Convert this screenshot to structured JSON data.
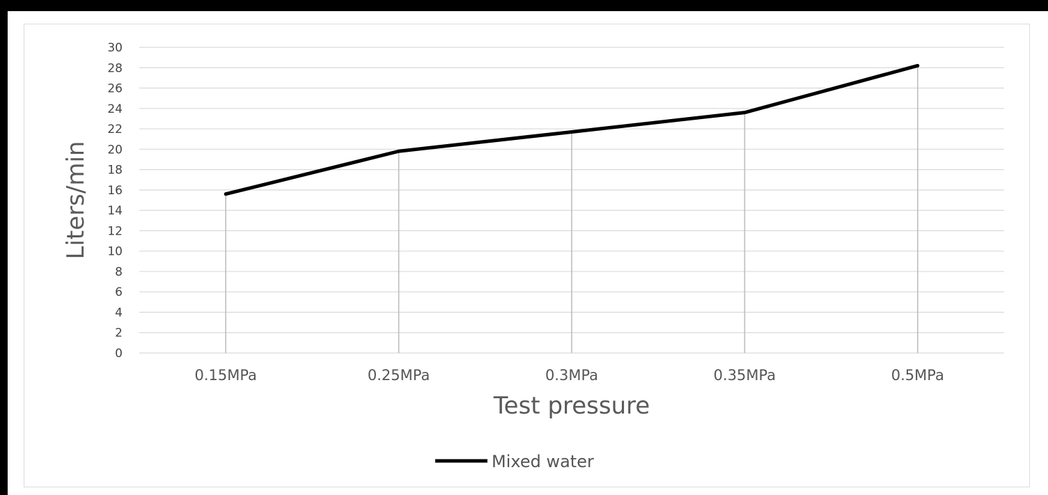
{
  "chart_data": {
    "type": "line",
    "title": "",
    "xlabel": "Test pressure",
    "ylabel": "Liters/min",
    "categories": [
      "0.15MPa",
      "0.25MPa",
      "0.3MPa",
      "0.35MPa",
      "0.5MPa"
    ],
    "series": [
      {
        "name": "Mixed water",
        "values": [
          15.6,
          19.8,
          21.7,
          23.6,
          28.2
        ],
        "color": "#000000"
      }
    ],
    "ylim": [
      0,
      30
    ],
    "yticks": [
      0,
      2,
      4,
      6,
      8,
      10,
      12,
      14,
      16,
      18,
      20,
      22,
      24,
      26,
      28,
      30
    ],
    "grid": true,
    "drop_lines": true,
    "legend_position": "bottom-center",
    "colors": {
      "gridline": "#d9d9d9",
      "dropline": "#bdbdbd",
      "line": "#000000",
      "background": "#000000"
    }
  }
}
